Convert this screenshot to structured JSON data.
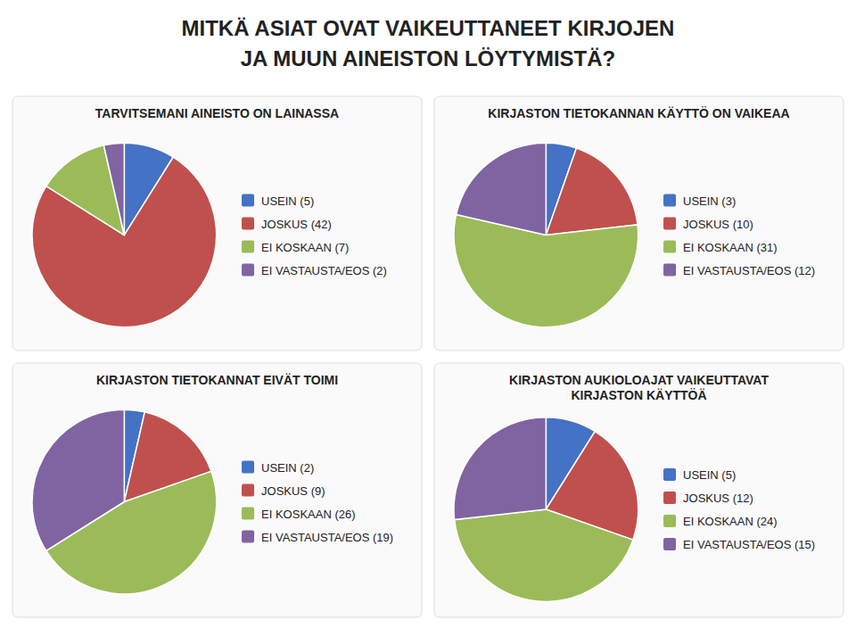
{
  "title": "MITKÄ ASIAT OVAT VAIKEUTTANEET KIRJOJEN\nJA MUUN AINEISTON LÖYTYMISTÄ?",
  "chart_data": [
    {
      "type": "pie",
      "title": "TARVITSEMANI AINEISTO ON LAINASSA",
      "categories": [
        "USEIN (5)",
        "JOSKUS (42)",
        "EI KOSKAAN (7)",
        "EI VASTAUSTA/EOS (2)"
      ],
      "values": [
        5,
        42,
        7,
        2
      ],
      "colors": [
        "#4472C4",
        "#C0504D",
        "#9BBB59",
        "#8064A2"
      ],
      "legend": "right"
    },
    {
      "type": "pie",
      "title": "KIRJASTON TIETOKANNAN KÄYTTÖ ON VAIKEAA",
      "categories": [
        "USEIN (3)",
        "JOSKUS (10)",
        "EI KOSKAAN (31)",
        "EI VASTAUSTA/EOS (12)"
      ],
      "values": [
        3,
        10,
        31,
        12
      ],
      "colors": [
        "#4472C4",
        "#C0504D",
        "#9BBB59",
        "#8064A2"
      ],
      "legend": "right"
    },
    {
      "type": "pie",
      "title": "KIRJASTON TIETOKANNAT EIVÄT TOIMI",
      "categories": [
        "USEIN (2)",
        "JOSKUS (9)",
        "EI KOSKAAN (26)",
        "EI VASTAUSTA/EOS (19)"
      ],
      "values": [
        2,
        9,
        26,
        19
      ],
      "colors": [
        "#4472C4",
        "#C0504D",
        "#9BBB59",
        "#8064A2"
      ],
      "legend": "right"
    },
    {
      "type": "pie",
      "title": "KIRJASTON AUKIOLOAJAT VAIKEUTTAVAT\nKIRJASTON KÄYTTÖÄ",
      "categories": [
        "USEIN (5)",
        "JOSKUS (12)",
        "EI KOSKAAN (24)",
        "EI VASTAUSTA/EOS (15)"
      ],
      "values": [
        5,
        12,
        24,
        15
      ],
      "colors": [
        "#4472C4",
        "#C0504D",
        "#9BBB59",
        "#8064A2"
      ],
      "legend": "right"
    }
  ]
}
